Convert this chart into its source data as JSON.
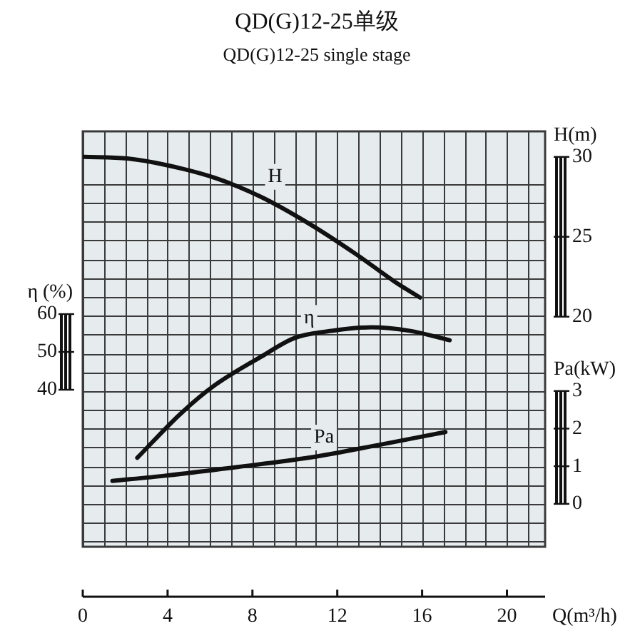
{
  "chart_data": {
    "type": "line",
    "title": "QD(G)12-25单级",
    "subtitle": "QD(G)12-25 single stage",
    "xlabel": "Q(m³/h)",
    "ylabel": "H(m)",
    "y2label": "η (%)",
    "y3label": "Pa(kW)",
    "xlim": [
      0,
      21.8
    ],
    "xticks": [
      0,
      {
        "value": 1,
        "label": null
      },
      {
        "value": 2,
        "label": null
      },
      {
        "value": 3,
        "label": null
      },
      4,
      {
        "value": 5,
        "label": null
      },
      {
        "value": 6,
        "label": null
      },
      {
        "value": 7,
        "label": null
      },
      8,
      {
        "value": 9,
        "label": null
      },
      {
        "value": 10,
        "label": null
      },
      {
        "value": 11,
        "label": null
      },
      12,
      {
        "value": 13,
        "label": null
      },
      {
        "value": 14,
        "label": null
      },
      {
        "value": 15,
        "label": null
      },
      16,
      {
        "value": 17,
        "label": null
      },
      {
        "value": 18,
        "label": null
      },
      {
        "value": 19,
        "label": null
      },
      20,
      {
        "value": 21,
        "label": null
      }
    ],
    "ylim": [
      5.6,
      31.6
    ],
    "yticks": [
      20,
      25,
      30
    ],
    "y2lim": [
      -1.5,
      108.3
    ],
    "y2ticks": [
      40,
      50,
      60
    ],
    "y3lim": [
      -1.14,
      9.9
    ],
    "y3ticks": [
      {
        "value": -1,
        "label": null
      },
      {
        "value": -0.5,
        "label": null
      },
      0,
      {
        "value": 0.5,
        "label": null
      },
      1,
      {
        "value": 1.5,
        "label": null
      },
      2,
      {
        "value": 2.5,
        "label": null
      },
      3,
      {
        "value": 3.5,
        "label": null
      },
      {
        "value": 4,
        "label": null
      },
      {
        "value": 4.5,
        "label": null
      },
      {
        "value": 5,
        "label": null
      },
      {
        "value": 5.5,
        "label": null
      },
      {
        "value": 6,
        "label": null
      },
      {
        "value": 6.5,
        "label": null
      },
      {
        "value": 7,
        "label": null
      },
      {
        "value": 7.5,
        "label": null
      },
      {
        "value": 8,
        "label": null
      },
      {
        "value": 8.5,
        "label": null
      }
    ],
    "grid": true,
    "legend": false,
    "marker": "none",
    "line_style": "solid",
    "series": [
      {
        "name": "H",
        "color": "#111111",
        "axis": "y",
        "x": [
          0.05,
          2.1,
          3.9,
          6.2,
          8.4,
          10.7,
          12.9,
          14.7,
          15.9
        ],
        "values": [
          30.0,
          29.9,
          29.5,
          28.7,
          27.5,
          25.8,
          23.9,
          22.2,
          21.2
        ]
      },
      {
        "name": "η",
        "color": "#111111",
        "axis": "y2",
        "x": [
          2.57,
          4.6,
          6.2,
          8.4,
          10.0,
          11.8,
          13.6,
          15.4,
          17.3
        ],
        "values": [
          22.0,
          33.6,
          41.1,
          48.7,
          53.7,
          55.6,
          56.5,
          55.6,
          53.1
        ]
      },
      {
        "name": "Pa",
        "color": "#111111",
        "axis": "y3",
        "x": [
          1.4,
          3.9,
          7.3,
          10.7,
          14.0,
          17.1
        ],
        "values": [
          0.61,
          0.75,
          0.98,
          1.23,
          1.57,
          1.91
        ]
      }
    ]
  }
}
